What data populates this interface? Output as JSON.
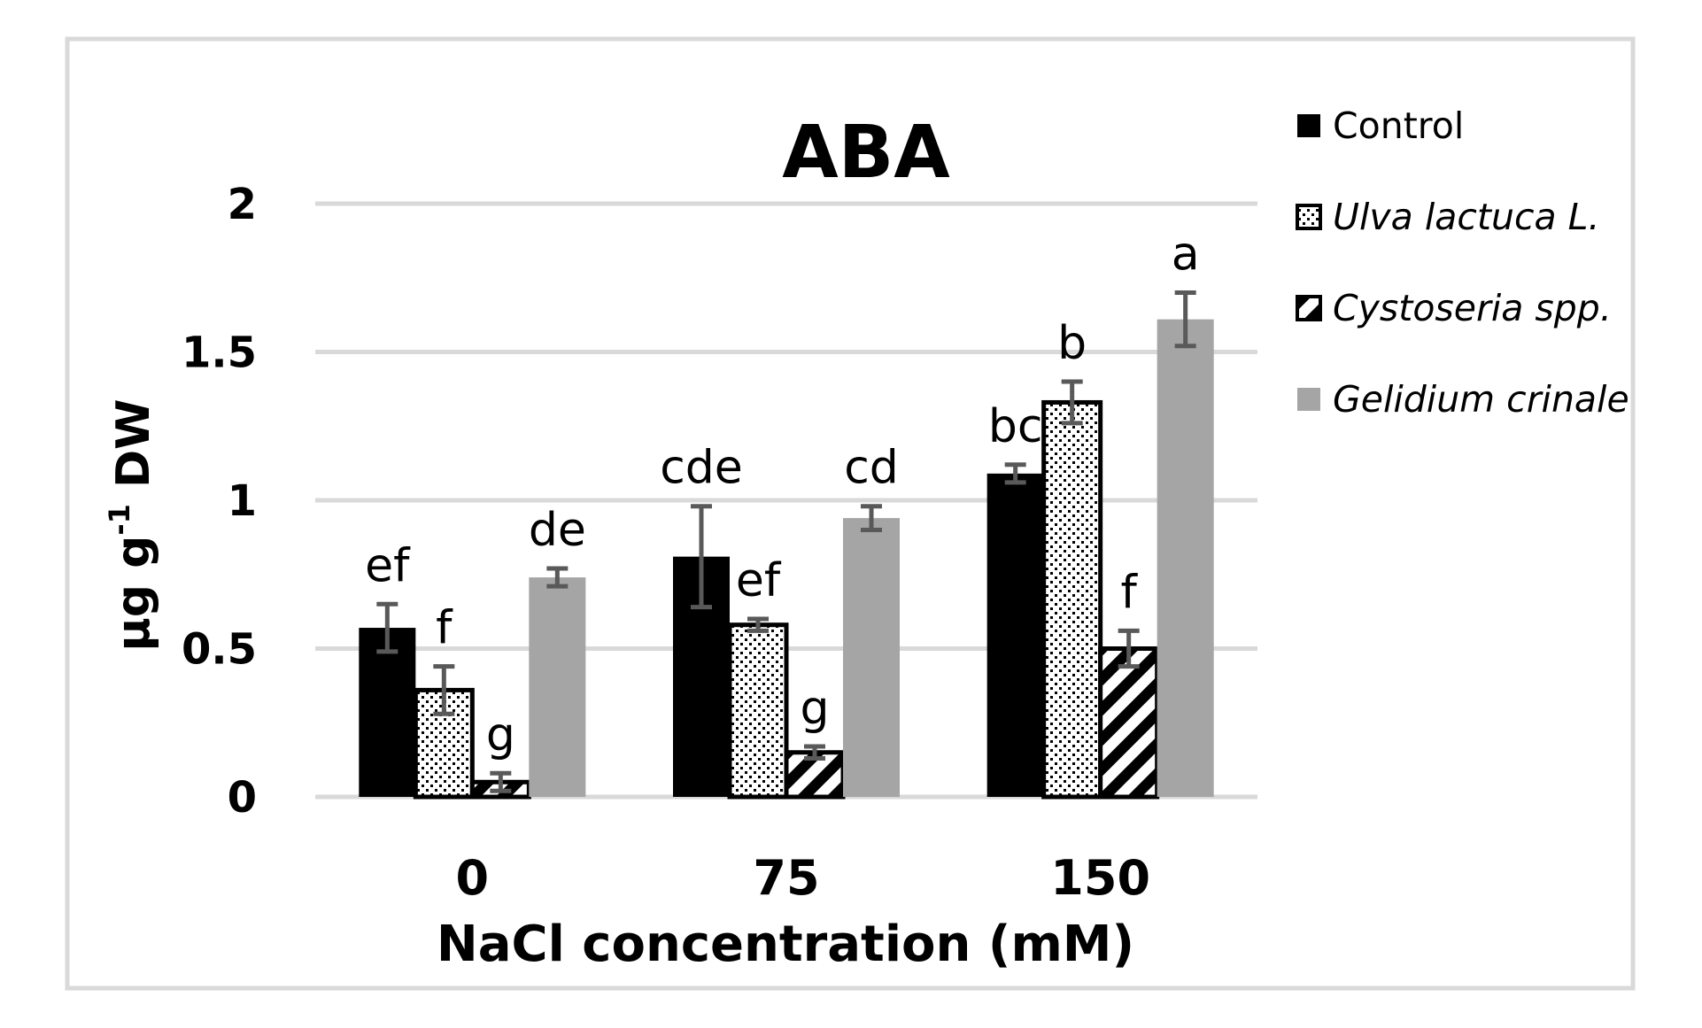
{
  "chart_data": {
    "type": "bar",
    "title": "ABA",
    "xlabel": "NaCl concentration (mM)",
    "ylabel": {
      "prefix": "µg g",
      "superscript": "-1",
      "suffix": " DW"
    },
    "categories": [
      "0",
      "75",
      "150"
    ],
    "ylim": [
      0,
      2
    ],
    "yticks": [
      {
        "value": 0,
        "label": "0"
      },
      {
        "value": 0.5,
        "label": "0.5"
      },
      {
        "value": 1,
        "label": "1"
      },
      {
        "value": 1.5,
        "label": "1.5"
      },
      {
        "value": 2,
        "label": "2"
      }
    ],
    "grid": true,
    "legend_position": "right",
    "series": [
      {
        "name": "Control",
        "italic": false,
        "pattern": "solid-black",
        "values": [
          0.57,
          0.81,
          1.09
        ],
        "errors": [
          0.08,
          0.17,
          0.03
        ],
        "letters": [
          "ef",
          "cde",
          "bc"
        ]
      },
      {
        "name": "Ulva lactuca L.",
        "italic": true,
        "pattern": "dots",
        "values": [
          0.36,
          0.58,
          1.33
        ],
        "errors": [
          0.08,
          0.02,
          0.07
        ],
        "letters": [
          "f",
          "ef",
          "b"
        ]
      },
      {
        "name": "Cystoseria spp.",
        "italic": true,
        "pattern": "diagonal-stripes",
        "values": [
          0.05,
          0.15,
          0.5
        ],
        "errors": [
          0.03,
          0.02,
          0.06
        ],
        "letters": [
          "g",
          "g",
          "f"
        ]
      },
      {
        "name": "Gelidium crinale",
        "italic": true,
        "pattern": "solid-gray",
        "values": [
          0.74,
          0.94,
          1.61
        ],
        "errors": [
          0.03,
          0.04,
          0.09
        ],
        "letters": [
          "de",
          "cd",
          "a"
        ]
      }
    ]
  },
  "colors": {
    "black": "#000000",
    "gray": "#a5a5a5",
    "grid": "#d9d9d9",
    "frame": "#d9d9d9",
    "errorbar": "#595959"
  }
}
